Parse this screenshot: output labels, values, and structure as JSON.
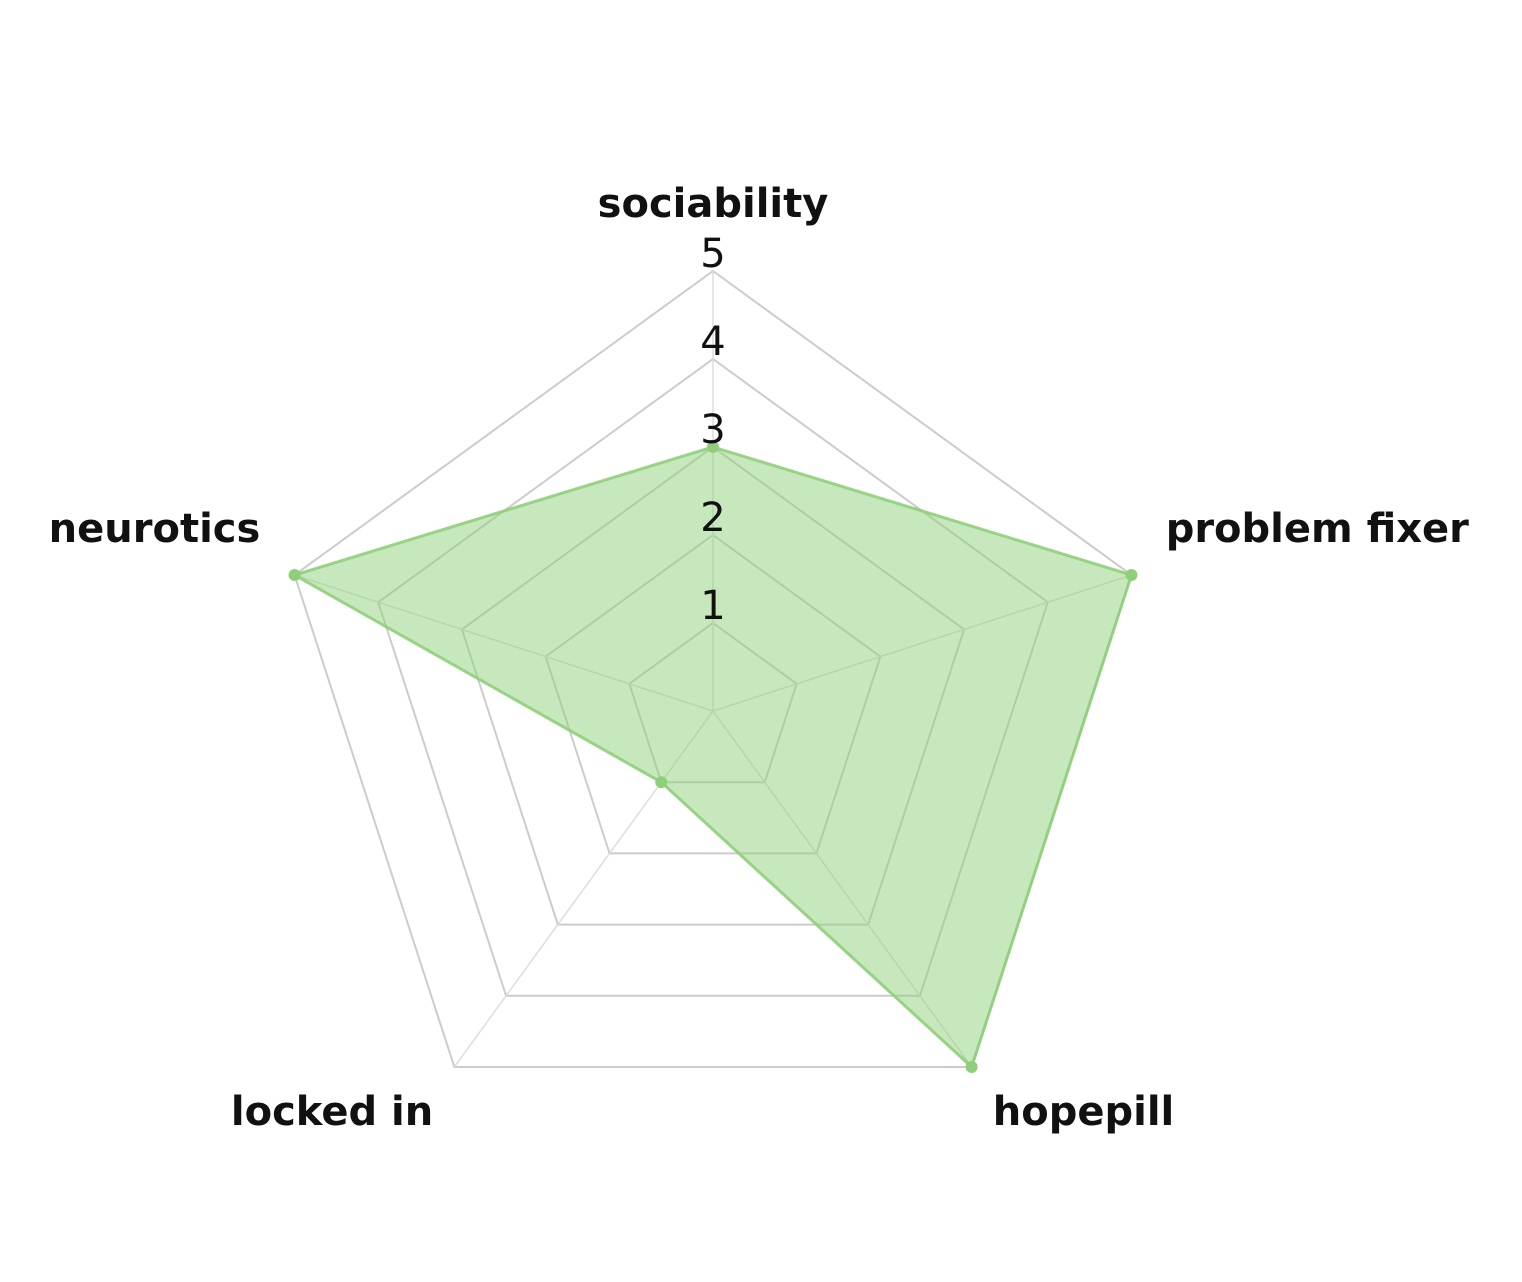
{
  "chart_data": {
    "type": "radar",
    "axes": [
      "sociability",
      "problem fixer",
      "hopepill",
      "locked in",
      "neurotics"
    ],
    "ticks": [
      "1",
      "2",
      "3",
      "4",
      "5"
    ],
    "range": [
      0,
      5
    ],
    "series": [
      {
        "values": [
          3,
          5,
          5,
          1,
          5
        ],
        "color": "#8fcf7a"
      }
    ],
    "legend": "none",
    "grid": true
  }
}
